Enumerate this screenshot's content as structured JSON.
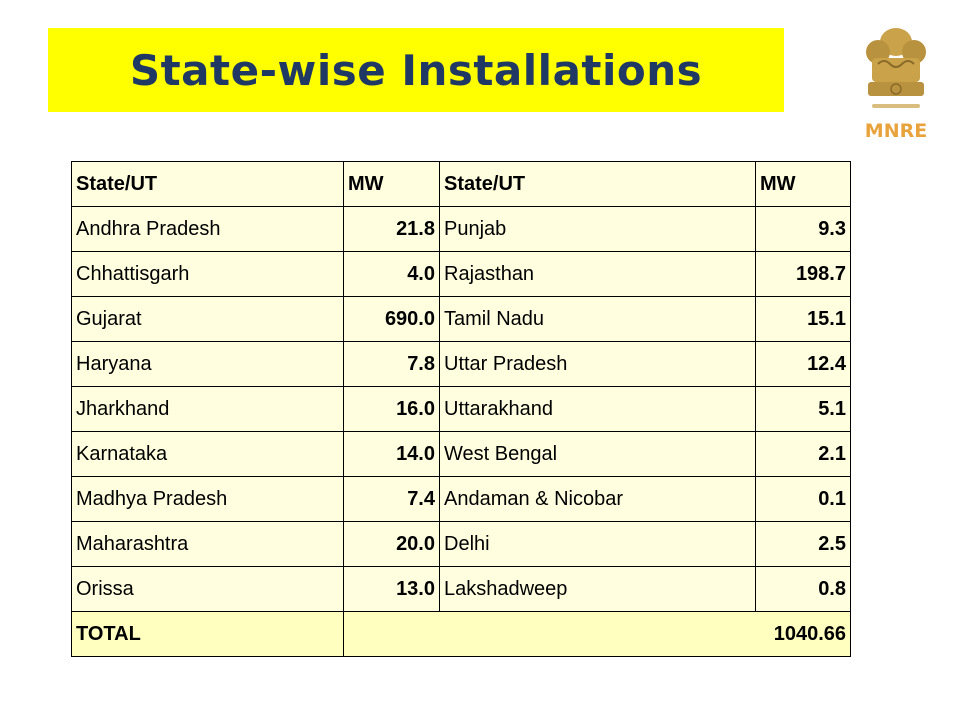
{
  "title": "State-wise Installations",
  "logo": {
    "label": "MNRE",
    "icon": "state-emblem-icon"
  },
  "table": {
    "headers": [
      "State/UT",
      "MW",
      "State/UT",
      "MW"
    ],
    "rows": [
      {
        "state_left": "Andhra Pradesh",
        "mw_left": "21.8",
        "state_right": "Punjab",
        "mw_right": "9.3"
      },
      {
        "state_left": "Chhattisgarh",
        "mw_left": "4.0",
        "state_right": "Rajasthan",
        "mw_right": "198.7"
      },
      {
        "state_left": "Gujarat",
        "mw_left": "690.0",
        "state_right": "Tamil Nadu",
        "mw_right": "15.1"
      },
      {
        "state_left": "Haryana",
        "mw_left": "7.8",
        "state_right": "Uttar Pradesh",
        "mw_right": "12.4"
      },
      {
        "state_left": "Jharkhand",
        "mw_left": "16.0",
        "state_right": "Uttarakhand",
        "mw_right": "5.1"
      },
      {
        "state_left": "Karnataka",
        "mw_left": "14.0",
        "state_right": "West Bengal",
        "mw_right": "2.1"
      },
      {
        "state_left": "Madhya Pradesh",
        "mw_left": "7.4",
        "state_right": "Andaman & Nicobar",
        "mw_right": "0.1"
      },
      {
        "state_left": "Maharashtra",
        "mw_left": "20.0",
        "state_right": "Delhi",
        "mw_right": "2.5"
      },
      {
        "state_left": "Orissa",
        "mw_left": "13.0",
        "state_right": "Lakshadweep",
        "mw_right": "0.8"
      }
    ],
    "total": {
      "label": "TOTAL",
      "value": "1040.66"
    }
  },
  "colors": {
    "title_banner": "#ffff00",
    "title_text": "#1f3864",
    "table_cell": "#ffffe0",
    "total_row": "#ffffc0",
    "logo_label": "#e8a33c",
    "emblem": "#c9a24a"
  }
}
